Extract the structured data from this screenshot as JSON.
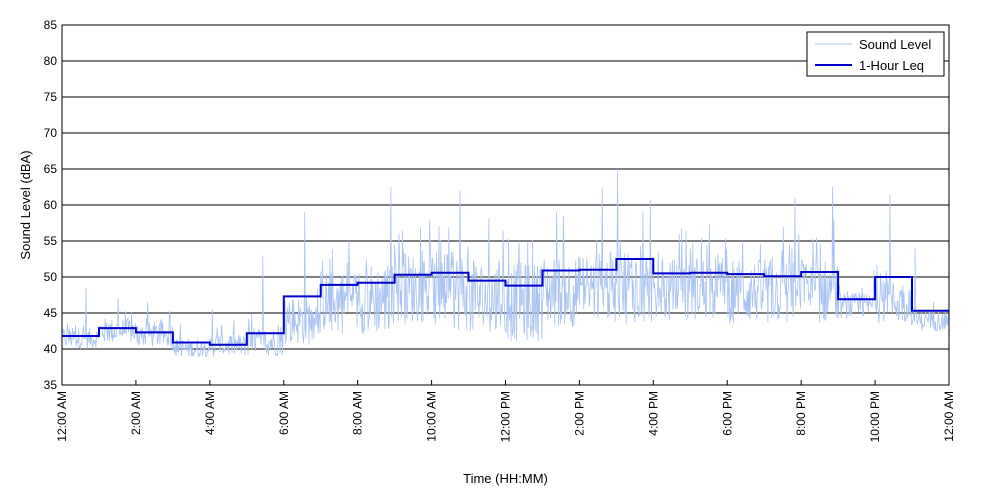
{
  "chart_data": {
    "type": "line",
    "xlabel": "Time (HH:MM)",
    "ylabel": "Sound Level (dBA)",
    "ylim": [
      35,
      85
    ],
    "xlim_hours": [
      0,
      24
    ],
    "yticks": [
      35,
      40,
      45,
      50,
      55,
      60,
      65,
      70,
      75,
      80,
      85
    ],
    "grid": "horizontal",
    "legend_position": "top-right",
    "xticks": [
      {
        "hour": 0,
        "label": "12:00 AM"
      },
      {
        "hour": 2,
        "label": "2:00 AM"
      },
      {
        "hour": 4,
        "label": "4:00 AM"
      },
      {
        "hour": 6,
        "label": "6:00 AM"
      },
      {
        "hour": 8,
        "label": "8:00 AM"
      },
      {
        "hour": 10,
        "label": "10:00 AM"
      },
      {
        "hour": 12,
        "label": "12:00 PM"
      },
      {
        "hour": 14,
        "label": "2:00 PM"
      },
      {
        "hour": 16,
        "label": "4:00 PM"
      },
      {
        "hour": 18,
        "label": "6:00 PM"
      },
      {
        "hour": 20,
        "label": "8:00 PM"
      },
      {
        "hour": 22,
        "label": "10:00 PM"
      },
      {
        "hour": 24,
        "label": "12:00 AM"
      }
    ],
    "series": [
      {
        "name": "Sound Level",
        "color": "#a9c3f2",
        "style": "thin-line",
        "hourly_profile": [
          {
            "hour": 0,
            "mean": 41.5,
            "spread": 1.5,
            "peaks": [
              48.5
            ]
          },
          {
            "hour": 1,
            "mean": 42.5,
            "spread": 1.8,
            "peaks": [
              47
            ]
          },
          {
            "hour": 2,
            "mean": 42,
            "spread": 1.8,
            "peaks": [
              46.5
            ]
          },
          {
            "hour": 3,
            "mean": 40,
            "spread": 1.5,
            "peaks": [
              43.5
            ]
          },
          {
            "hour": 4,
            "mean": 40.5,
            "spread": 1.6,
            "peaks": [
              45.5
            ]
          },
          {
            "hour": 5,
            "mean": 41,
            "spread": 2,
            "peaks": [
              53
            ]
          },
          {
            "hour": 6,
            "mean": 44,
            "spread": 3.5,
            "peaks": [
              59
            ]
          },
          {
            "hour": 7,
            "mean": 46.5,
            "spread": 4.5,
            "peaks": [
              55
            ]
          },
          {
            "hour": 8,
            "mean": 47,
            "spread": 5,
            "peaks": [
              62.5
            ]
          },
          {
            "hour": 9,
            "mean": 48.5,
            "spread": 5,
            "peaks": [
              56
            ]
          },
          {
            "hour": 10,
            "mean": 48,
            "spread": 5.5,
            "peaks": [
              62
            ]
          },
          {
            "hour": 11,
            "mean": 47,
            "spread": 5.5,
            "peaks": [
              56.5
            ]
          },
          {
            "hour": 12,
            "mean": 46.5,
            "spread": 5.5,
            "peaks": [
              55
            ]
          },
          {
            "hour": 13,
            "mean": 48,
            "spread": 5,
            "peaks": [
              59
            ]
          },
          {
            "hour": 14,
            "mean": 48.5,
            "spread": 5,
            "peaks": [
              62.5
            ]
          },
          {
            "hour": 15,
            "mean": 49,
            "spread": 5.5,
            "peaks": [
              65
            ]
          },
          {
            "hour": 16,
            "mean": 48,
            "spread": 4.5,
            "peaks": [
              56
            ]
          },
          {
            "hour": 17,
            "mean": 48.5,
            "spread": 4.5,
            "peaks": [
              55.5
            ]
          },
          {
            "hour": 18,
            "mean": 48,
            "spread": 4.5,
            "peaks": [
              55
            ]
          },
          {
            "hour": 19,
            "mean": 48,
            "spread": 4.5,
            "peaks": [
              61
            ]
          },
          {
            "hour": 20,
            "mean": 48,
            "spread": 4.5,
            "peaks": [
              62.5
            ]
          },
          {
            "hour": 21,
            "mean": 46,
            "spread": 1.8,
            "peaks": [
              51
            ]
          },
          {
            "hour": 22,
            "mean": 46.5,
            "spread": 3,
            "peaks": [
              61.5
            ]
          },
          {
            "hour": 23,
            "mean": 44,
            "spread": 1.5,
            "peaks": [
              54
            ]
          }
        ]
      },
      {
        "name": "1-Hour Leq",
        "color": "#0000cc",
        "style": "step",
        "x_hours": [
          0,
          1,
          2,
          3,
          4,
          5,
          6,
          7,
          8,
          9,
          10,
          11,
          12,
          13,
          14,
          15,
          16,
          17,
          18,
          19,
          20,
          21,
          22,
          23
        ],
        "values": [
          41.8,
          42.9,
          42.3,
          40.9,
          40.6,
          42.2,
          47.3,
          48.9,
          49.2,
          50.3,
          50.6,
          49.5,
          48.8,
          50.9,
          51.0,
          52.5,
          50.5,
          50.6,
          50.4,
          50.1,
          50.7,
          46.9,
          50.0,
          45.3
        ]
      }
    ]
  }
}
